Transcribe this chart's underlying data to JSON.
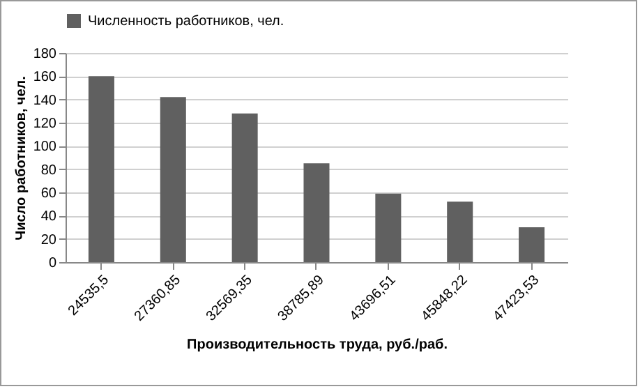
{
  "chart_data": {
    "type": "bar",
    "xlabel": "Производительность труда, руб./раб.",
    "ylabel": "Число работников, чел.",
    "categories": [
      "24535,5",
      "27360,85",
      "32569,35",
      "38785,89",
      "43696,51",
      "45848,22",
      "47423,53"
    ],
    "series": [
      {
        "name": "Численность работников, чел.",
        "color": "#606060",
        "values": [
          160,
          142,
          128,
          85,
          59,
          52,
          30
        ]
      }
    ],
    "ylim": [
      0,
      180
    ],
    "yticks": [
      0,
      20,
      40,
      60,
      80,
      100,
      120,
      140,
      160,
      180
    ],
    "grid": "y",
    "legend": "top"
  }
}
